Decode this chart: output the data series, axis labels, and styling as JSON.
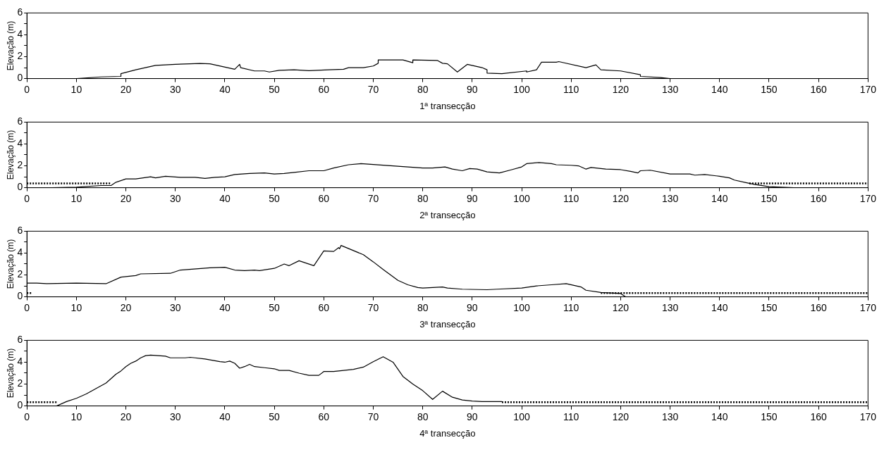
{
  "chart_data": [
    {
      "type": "line",
      "xlabel": "1ª transecção",
      "ylabel": "Elevação (m)",
      "xlim": [
        0,
        170
      ],
      "ylim": [
        0,
        6
      ],
      "xticks": [
        0,
        10,
        20,
        30,
        40,
        50,
        60,
        70,
        80,
        90,
        100,
        110,
        120,
        130,
        140,
        150,
        160,
        170
      ],
      "yticks": [
        0,
        {
          "value": 1,
          "label": null
        },
        2,
        {
          "value": 3,
          "label": null
        },
        4,
        {
          "value": 5,
          "label": null
        },
        6
      ],
      "grid": false,
      "legend": false,
      "marker": "none",
      "series": [
        {
          "color": "#000000",
          "line_style": "solid",
          "x": [
            0,
            10,
            15,
            19,
            19,
            22,
            26,
            30,
            35,
            37,
            42,
            43,
            43.2,
            46,
            48,
            49,
            51,
            54,
            57,
            61,
            64,
            65,
            68,
            70,
            71,
            71,
            76,
            78,
            78,
            83,
            84,
            85,
            87,
            89,
            92,
            93,
            93,
            96,
            101,
            101,
            103,
            104,
            107,
            107.5,
            113,
            115,
            116,
            120,
            124,
            124,
            128,
            130,
            170
          ],
          "values": [
            0,
            0,
            0.15,
            0.2,
            0.45,
            0.8,
            1.2,
            1.3,
            1.38,
            1.35,
            0.85,
            1.3,
            1.0,
            0.7,
            0.7,
            0.6,
            0.75,
            0.8,
            0.72,
            0.8,
            0.85,
            1.0,
            1.0,
            1.15,
            1.4,
            1.7,
            1.7,
            1.45,
            1.7,
            1.65,
            1.4,
            1.35,
            0.6,
            1.3,
            1.0,
            0.8,
            0.5,
            0.45,
            0.7,
            0.6,
            0.8,
            1.5,
            1.5,
            1.55,
            1.0,
            1.25,
            0.8,
            0.7,
            0.35,
            0.2,
            0.1,
            0,
            0
          ]
        }
      ]
    },
    {
      "type": "line",
      "xlabel": "2ª transecção",
      "ylabel": "Elevação (m)",
      "xlim": [
        0,
        170
      ],
      "ylim": [
        0,
        6
      ],
      "xticks": [
        0,
        10,
        20,
        30,
        40,
        50,
        60,
        70,
        80,
        90,
        100,
        110,
        120,
        130,
        140,
        150,
        160,
        170
      ],
      "yticks": [
        0,
        {
          "value": 1,
          "label": null
        },
        2,
        {
          "value": 3,
          "label": null
        },
        4,
        {
          "value": 5,
          "label": null
        },
        6
      ],
      "grid": false,
      "legend": false,
      "marker": "none",
      "series": [
        {
          "color": "#000000",
          "line_style": "solid",
          "x": [
            0,
            5,
            10,
            15,
            17,
            18,
            20,
            22,
            25,
            26,
            28,
            31,
            34,
            36,
            38,
            40,
            42,
            45,
            48,
            50,
            52,
            54,
            57,
            60,
            62,
            65,
            67.5,
            80,
            82,
            84.5,
            86,
            88,
            89.5,
            91,
            93,
            95.5,
            98,
            100,
            101,
            103.5,
            106,
            107,
            110,
            111.5,
            113,
            114,
            117,
            120,
            122,
            123.5,
            124,
            126,
            130,
            134,
            135,
            137,
            140,
            142,
            143,
            145,
            147,
            150,
            155,
            170
          ],
          "values": [
            0,
            0,
            0.05,
            0.2,
            0.2,
            0.5,
            0.8,
            0.8,
            1.0,
            0.9,
            1.05,
            0.95,
            0.95,
            0.85,
            0.95,
            1.0,
            1.2,
            1.3,
            1.35,
            1.25,
            1.3,
            1.4,
            1.55,
            1.55,
            1.8,
            2.1,
            2.2,
            1.8,
            1.8,
            1.9,
            1.7,
            1.55,
            1.75,
            1.7,
            1.45,
            1.35,
            1.65,
            1.9,
            2.2,
            2.3,
            2.2,
            2.1,
            2.05,
            2.0,
            1.7,
            1.85,
            1.7,
            1.65,
            1.5,
            1.35,
            1.55,
            1.6,
            1.25,
            1.25,
            1.15,
            1.2,
            1.05,
            0.9,
            0.7,
            0.5,
            0.3,
            0.1,
            0,
            0
          ]
        },
        {
          "color": "#000000",
          "line_style": "dotted",
          "x": [
            0,
            17,
            null,
            146,
            170
          ],
          "values": [
            0.4,
            0.4,
            null,
            0.4,
            0.4
          ]
        }
      ]
    },
    {
      "type": "line",
      "xlabel": "3ª transecção",
      "ylabel": "Elevação (m)",
      "xlim": [
        0,
        170
      ],
      "ylim": [
        0,
        6
      ],
      "xticks": [
        0,
        10,
        20,
        30,
        40,
        50,
        60,
        70,
        80,
        90,
        100,
        110,
        120,
        130,
        140,
        150,
        160,
        170
      ],
      "yticks": [
        0,
        {
          "value": 1,
          "label": null
        },
        2,
        {
          "value": 3,
          "label": null
        },
        4,
        {
          "value": 5,
          "label": null
        },
        6
      ],
      "grid": false,
      "legend": false,
      "marker": "none",
      "series": [
        {
          "color": "#000000",
          "line_style": "solid",
          "x": [
            0,
            2,
            4,
            10,
            16,
            19,
            22,
            23,
            29,
            31,
            37,
            40,
            42,
            44,
            46,
            47,
            50,
            52,
            53,
            55,
            58,
            60,
            62,
            63,
            63.2,
            63.5,
            68,
            70,
            72,
            75,
            77,
            79,
            80,
            82,
            84,
            85,
            88,
            93,
            95,
            100,
            103,
            106,
            109,
            112,
            113,
            116,
            120,
            121,
            170
          ],
          "values": [
            1.25,
            1.25,
            1.2,
            1.25,
            1.2,
            1.8,
            1.95,
            2.1,
            2.15,
            2.45,
            2.65,
            2.7,
            2.45,
            2.4,
            2.45,
            2.4,
            2.6,
            3.0,
            2.85,
            3.3,
            2.85,
            4.2,
            4.15,
            4.5,
            4.4,
            4.7,
            3.85,
            3.2,
            2.5,
            1.5,
            1.1,
            0.85,
            0.8,
            0.85,
            0.9,
            0.8,
            0.7,
            0.65,
            0.7,
            0.8,
            1.0,
            1.1,
            1.2,
            0.9,
            0.6,
            0.4,
            0.3,
            0,
            0
          ]
        },
        {
          "color": "#000000",
          "line_style": "dotted",
          "x": [
            0,
            1,
            null,
            116,
            170
          ],
          "values": [
            0.35,
            0.35,
            null,
            0.35,
            0.35
          ]
        }
      ]
    },
    {
      "type": "line",
      "xlabel": "4ª transecção",
      "ylabel": "Elevação (m)",
      "xlim": [
        0,
        170
      ],
      "ylim": [
        0,
        6
      ],
      "xticks": [
        0,
        10,
        20,
        30,
        40,
        50,
        60,
        70,
        80,
        90,
        100,
        110,
        120,
        130,
        140,
        150,
        160,
        170
      ],
      "yticks": [
        0,
        {
          "value": 1,
          "label": null
        },
        2,
        {
          "value": 3,
          "label": null
        },
        4,
        {
          "value": 5,
          "label": null
        },
        6
      ],
      "grid": false,
      "legend": false,
      "marker": "none",
      "series": [
        {
          "color": "#000000",
          "line_style": "solid",
          "x": [
            0,
            6,
            8,
            10,
            12,
            14,
            16,
            17,
            18,
            19,
            20,
            21,
            22,
            23,
            24,
            25,
            28,
            29,
            32,
            33,
            36,
            39,
            40,
            41,
            42,
            43,
            44,
            45,
            46,
            48,
            50,
            51,
            53,
            55,
            57,
            59,
            60,
            62,
            64,
            66,
            68,
            70,
            72,
            74,
            76,
            78,
            80,
            82,
            84,
            86,
            88,
            90,
            92,
            96
          ],
          "values": [
            0,
            0,
            0.4,
            0.7,
            1.1,
            1.6,
            2.1,
            2.5,
            2.9,
            3.2,
            3.6,
            3.9,
            4.1,
            4.4,
            4.6,
            4.65,
            4.55,
            4.4,
            4.4,
            4.45,
            4.3,
            4.05,
            4.0,
            4.1,
            3.9,
            3.45,
            3.6,
            3.8,
            3.6,
            3.5,
            3.4,
            3.25,
            3.25,
            3.0,
            2.8,
            2.8,
            3.15,
            3.15,
            3.25,
            3.35,
            3.55,
            4.05,
            4.5,
            4.0,
            2.7,
            2.0,
            1.4,
            0.6,
            1.35,
            0.8,
            0.55,
            0.45,
            0.4,
            0.4
          ]
        },
        {
          "color": "#000000",
          "line_style": "dotted",
          "x": [
            0,
            6,
            null,
            96,
            170
          ],
          "values": [
            0.35,
            0.35,
            null,
            0.35,
            0.35
          ]
        }
      ]
    }
  ]
}
